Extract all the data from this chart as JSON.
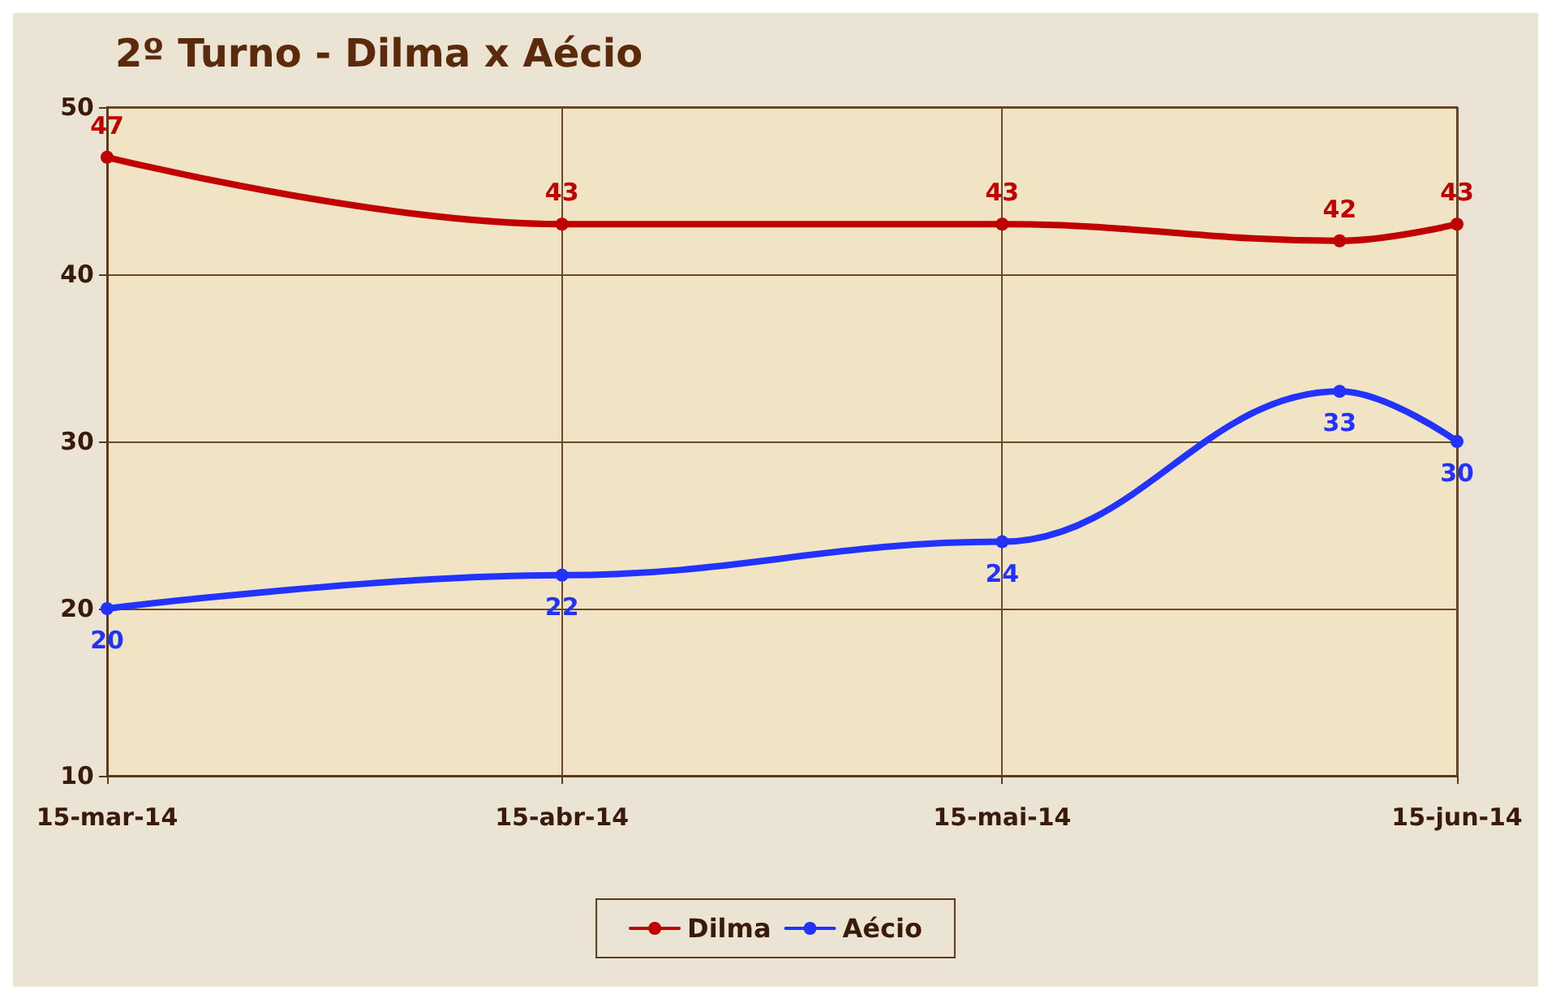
{
  "chart_data": {
    "type": "line",
    "title": "2º Turno - Dilma x Aécio",
    "x": [
      "2014-03-15",
      "2014-04-15",
      "2014-05-15",
      "2014-06-07",
      "2014-06-15"
    ],
    "series": [
      {
        "name": "Dilma",
        "color": "#c00000",
        "values": [
          47,
          43,
          43,
          42,
          43
        ]
      },
      {
        "name": "Aécio",
        "color": "#2233ff",
        "values": [
          20,
          22,
          24,
          33,
          30
        ]
      }
    ],
    "xlim": [
      "2014-03-15",
      "2014-06-15"
    ],
    "xticks": [
      {
        "value": "2014-03-15",
        "label": "15-mar-14"
      },
      {
        "value": "2014-04-15",
        "label": "15-abr-14"
      },
      {
        "value": "2014-05-15",
        "label": "15-mai-14"
      },
      {
        "value": "2014-06-15",
        "label": "15-jun-14"
      }
    ],
    "ylim": [
      10,
      50
    ],
    "yticks": [
      10,
      20,
      30,
      40,
      50
    ],
    "grid": true,
    "legend": "bottom",
    "marker": "circle",
    "line_style": "solid",
    "data_labels": true
  }
}
